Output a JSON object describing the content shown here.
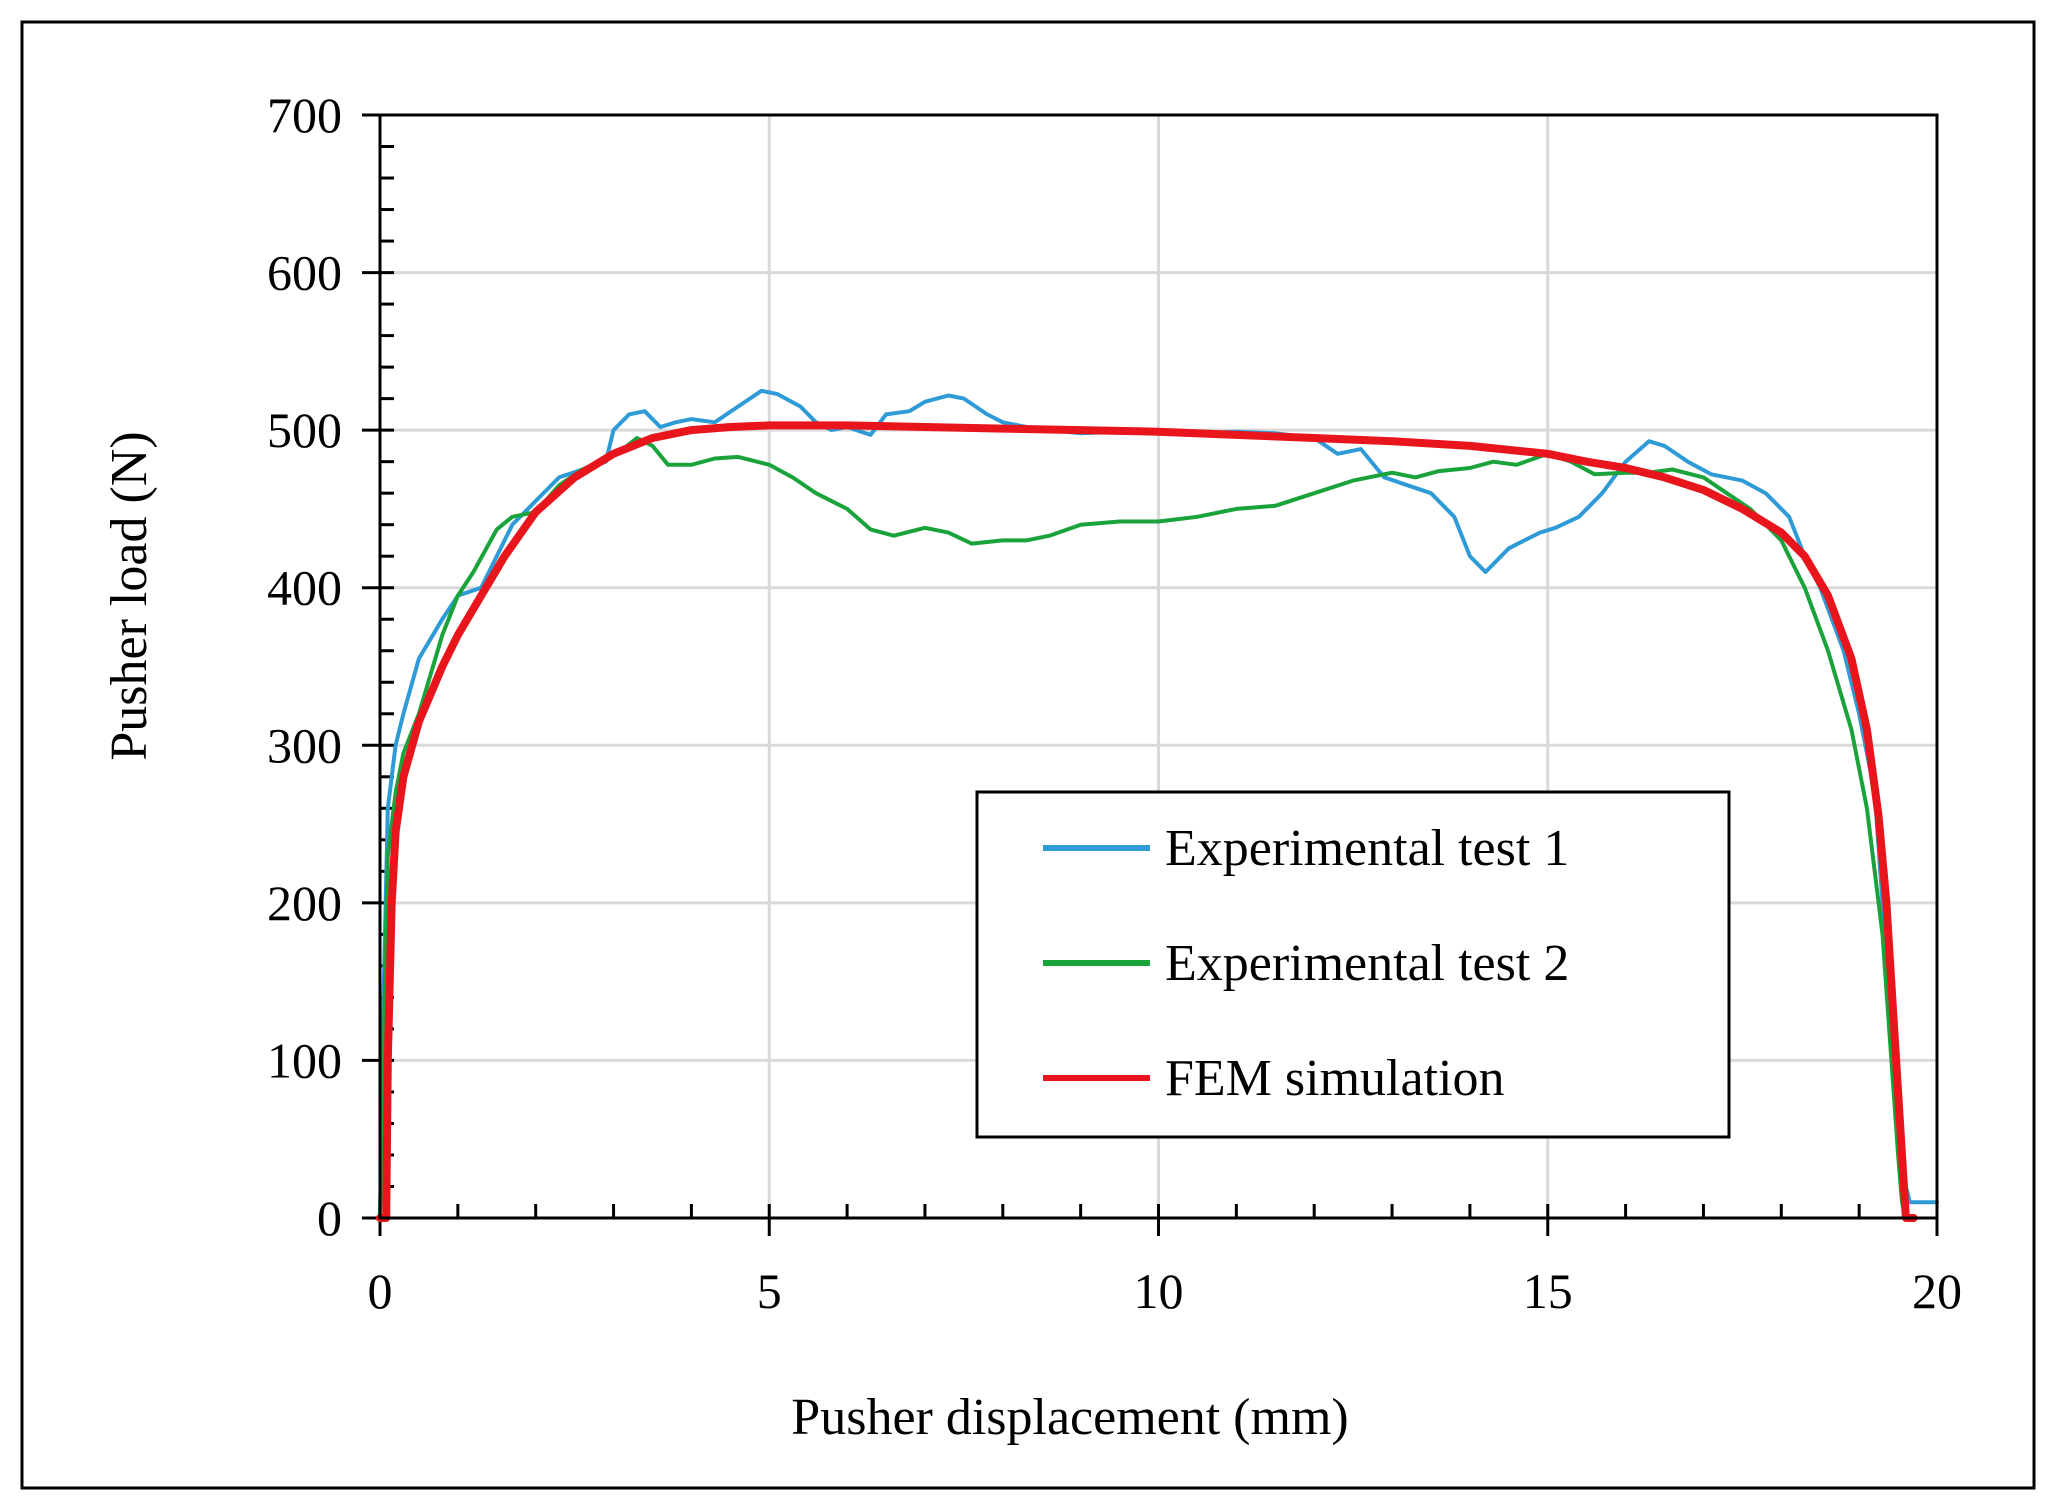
{
  "chart_data": {
    "type": "line",
    "xlabel": "Pusher displacement (mm)",
    "ylabel": "Pusher load (N)",
    "xlim": [
      0,
      20
    ],
    "ylim": [
      0,
      700
    ],
    "x_ticks": [
      0,
      5,
      10,
      15,
      20
    ],
    "y_ticks": [
      0,
      100,
      200,
      300,
      400,
      500,
      600,
      700
    ],
    "x_tick_labels": [
      "0",
      "5",
      "10",
      "15",
      "20"
    ],
    "y_tick_labels": [
      "0",
      "100",
      "200",
      "300",
      "400",
      "500",
      "600",
      "700"
    ],
    "grid": true,
    "legend_position": "bottom-right",
    "series": [
      {
        "name": "Experimental test 1",
        "color": "#2e9bd6",
        "x": [
          0,
          0.05,
          0.1,
          0.2,
          0.3,
          0.5,
          0.8,
          1.0,
          1.3,
          1.5,
          1.7,
          2.0,
          2.3,
          2.6,
          2.9,
          3.0,
          3.2,
          3.4,
          3.6,
          3.8,
          4.0,
          4.3,
          4.6,
          4.9,
          5.1,
          5.4,
          5.6,
          5.8,
          6.0,
          6.3,
          6.5,
          6.8,
          7.0,
          7.3,
          7.5,
          7.8,
          8.0,
          8.3,
          8.6,
          9.0,
          9.5,
          10.0,
          10.5,
          11.0,
          11.5,
          12.0,
          12.3,
          12.6,
          12.9,
          13.2,
          13.5,
          13.8,
          14.0,
          14.2,
          14.3,
          14.5,
          14.7,
          14.9,
          15.1,
          15.4,
          15.7,
          16.0,
          16.3,
          16.5,
          16.8,
          17.1,
          17.5,
          17.8,
          18.1,
          18.3,
          18.5,
          18.8,
          19.0,
          19.2,
          19.3,
          19.4,
          19.5,
          19.6,
          19.65,
          19.7,
          20.0
        ],
        "values": [
          0,
          150,
          260,
          300,
          320,
          355,
          380,
          395,
          400,
          420,
          440,
          455,
          470,
          475,
          480,
          500,
          510,
          512,
          502,
          505,
          507,
          505,
          515,
          525,
          523,
          515,
          505,
          500,
          502,
          497,
          510,
          512,
          518,
          522,
          520,
          510,
          505,
          502,
          500,
          498,
          499,
          500,
          498,
          499,
          498,
          495,
          485,
          488,
          470,
          465,
          460,
          445,
          420,
          410,
          415,
          425,
          430,
          435,
          438,
          445,
          460,
          480,
          493,
          490,
          480,
          472,
          468,
          460,
          445,
          420,
          400,
          360,
          320,
          270,
          200,
          130,
          60,
          20,
          10,
          10,
          10
        ]
      },
      {
        "name": "Experimental test 2",
        "color": "#1aa33a",
        "x": [
          0,
          0.05,
          0.1,
          0.2,
          0.3,
          0.5,
          0.8,
          1.0,
          1.2,
          1.5,
          1.7,
          2.0,
          2.3,
          2.6,
          2.9,
          3.1,
          3.3,
          3.5,
          3.7,
          4.0,
          4.3,
          4.6,
          5.0,
          5.3,
          5.6,
          6.0,
          6.3,
          6.6,
          7.0,
          7.3,
          7.6,
          8.0,
          8.3,
          8.6,
          9.0,
          9.5,
          10.0,
          10.5,
          11.0,
          11.5,
          12.0,
          12.5,
          13.0,
          13.3,
          13.6,
          14.0,
          14.3,
          14.6,
          15.0,
          15.3,
          15.6,
          16.0,
          16.3,
          16.6,
          17.0,
          17.3,
          17.6,
          18.0,
          18.3,
          18.6,
          18.9,
          19.1,
          19.3,
          19.4,
          19.5,
          19.55,
          19.6
        ],
        "values": [
          0,
          120,
          230,
          270,
          295,
          320,
          370,
          395,
          410,
          437,
          445,
          448,
          465,
          475,
          482,
          487,
          495,
          490,
          478,
          478,
          482,
          483,
          478,
          470,
          460,
          450,
          437,
          433,
          438,
          435,
          428,
          430,
          430,
          433,
          440,
          442,
          442,
          445,
          450,
          452,
          460,
          468,
          473,
          470,
          474,
          476,
          480,
          478,
          485,
          480,
          472,
          473,
          473,
          475,
          470,
          460,
          450,
          430,
          400,
          360,
          310,
          260,
          180,
          110,
          40,
          10,
          0
        ]
      },
      {
        "name": "FEM simulation",
        "color": "#e8161c",
        "x": [
          0,
          0.08,
          0.1,
          0.15,
          0.2,
          0.3,
          0.5,
          0.8,
          1.0,
          1.3,
          1.6,
          2.0,
          2.5,
          3.0,
          3.5,
          4.0,
          4.5,
          5.0,
          6.0,
          7.0,
          8.0,
          9.0,
          10.0,
          11.0,
          12.0,
          13.0,
          14.0,
          15.0,
          15.5,
          16.0,
          16.5,
          17.0,
          17.5,
          18.0,
          18.3,
          18.6,
          18.9,
          19.1,
          19.25,
          19.35,
          19.45,
          19.55,
          19.6,
          19.65,
          19.7
        ],
        "values": [
          0,
          0,
          100,
          200,
          245,
          280,
          315,
          350,
          370,
          395,
          420,
          448,
          470,
          485,
          495,
          500,
          502,
          503,
          503,
          502,
          501,
          500,
          499,
          497,
          495,
          493,
          490,
          485,
          480,
          476,
          470,
          462,
          450,
          435,
          420,
          395,
          355,
          310,
          255,
          200,
          120,
          40,
          0,
          0,
          0
        ]
      }
    ]
  }
}
